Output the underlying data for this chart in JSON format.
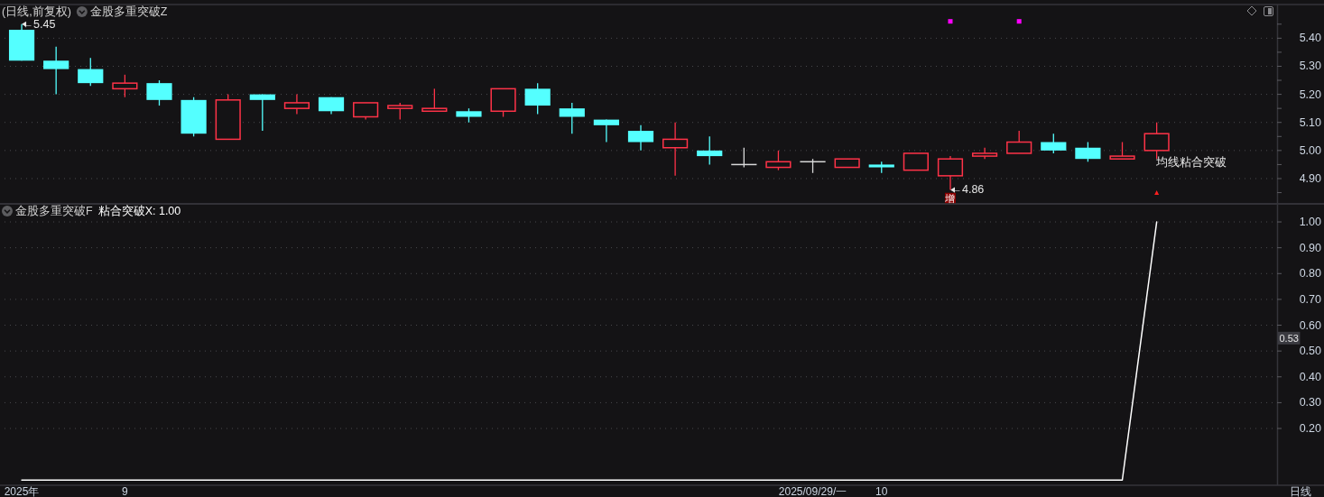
{
  "chart_data": [
    {
      "type": "candlestick",
      "title": "(日线,前复权)",
      "subtitle": "金股多重突破Z",
      "categories": [
        null,
        null,
        null,
        null,
        null,
        null,
        null,
        null,
        null,
        null,
        null,
        null,
        null,
        null,
        null,
        null,
        null,
        null,
        null,
        null,
        null,
        null,
        null,
        null,
        null,
        null,
        null,
        null,
        null,
        null,
        null,
        null,
        null,
        null,
        null,
        null,
        null
      ],
      "ohlc": [
        [
          5.43,
          5.45,
          5.32,
          5.32
        ],
        [
          5.32,
          5.37,
          5.2,
          5.29
        ],
        [
          5.29,
          5.33,
          5.23,
          5.24
        ],
        [
          5.22,
          5.27,
          5.19,
          5.24
        ],
        [
          5.24,
          5.25,
          5.16,
          5.18
        ],
        [
          5.18,
          5.19,
          5.05,
          5.06
        ],
        [
          5.04,
          5.2,
          5.04,
          5.18
        ],
        [
          5.2,
          5.2,
          5.07,
          5.18
        ],
        [
          5.15,
          5.2,
          5.13,
          5.17
        ],
        [
          5.19,
          5.19,
          5.13,
          5.14
        ],
        [
          5.12,
          5.17,
          5.11,
          5.17
        ],
        [
          5.15,
          5.17,
          5.11,
          5.16
        ],
        [
          5.14,
          5.22,
          5.14,
          5.15
        ],
        [
          5.14,
          5.15,
          5.1,
          5.12
        ],
        [
          5.14,
          5.22,
          5.12,
          5.22
        ],
        [
          5.22,
          5.24,
          5.13,
          5.16
        ],
        [
          5.15,
          5.17,
          5.06,
          5.12
        ],
        [
          5.11,
          5.11,
          5.03,
          5.09
        ],
        [
          5.07,
          5.09,
          5.0,
          5.03
        ],
        [
          5.01,
          5.1,
          4.91,
          5.04
        ],
        [
          5.0,
          5.05,
          4.95,
          4.98
        ],
        [
          4.95,
          5.01,
          4.94,
          4.95
        ],
        [
          4.94,
          5.0,
          4.93,
          4.96
        ],
        [
          4.96,
          4.97,
          4.92,
          4.96
        ],
        [
          4.94,
          4.97,
          4.94,
          4.97
        ],
        [
          4.95,
          4.96,
          4.92,
          4.94
        ],
        [
          4.93,
          4.99,
          4.93,
          4.99
        ],
        [
          4.91,
          4.98,
          4.86,
          4.97
        ],
        [
          4.98,
          5.01,
          4.97,
          4.99
        ],
        [
          4.99,
          5.07,
          4.99,
          5.03
        ],
        [
          5.03,
          5.06,
          4.99,
          5.0
        ],
        [
          5.01,
          5.03,
          4.96,
          4.97
        ],
        [
          4.97,
          5.03,
          4.97,
          4.98
        ],
        [
          5.0,
          5.1,
          4.97,
          5.06
        ],
        null,
        null,
        null
      ],
      "colors": [
        "#54ffff",
        "#54ffff",
        "#54ffff",
        "#ff3348",
        "#54ffff",
        "#54ffff",
        "#ff3348",
        "#54ffff",
        "#ff3348",
        "#54ffff",
        "#ff3348",
        "#ff3348",
        "#ff3348",
        "#54ffff",
        "#ff3348",
        "#54ffff",
        "#54ffff",
        "#54ffff",
        "#54ffff",
        "#ff3348",
        "#54ffff",
        "#d9d9d9",
        "#ff3348",
        "#d9d9d9",
        "#ff3348",
        "#54ffff",
        "#ff3348",
        "#ff3348",
        "#ff3348",
        "#ff3348",
        "#54ffff",
        "#54ffff",
        "#ff3348",
        "#ff3348",
        null,
        null,
        null
      ],
      "series": [
        {
          "type": "scatter",
          "color": "#ff00ff",
          "marker": "square",
          "values": [
            null,
            null,
            null,
            null,
            null,
            null,
            null,
            null,
            null,
            null,
            null,
            null,
            null,
            null,
            null,
            null,
            null,
            null,
            null,
            null,
            null,
            null,
            null,
            null,
            null,
            null,
            null,
            5.46,
            null,
            5.46,
            null,
            null,
            null,
            null,
            null,
            null,
            null
          ]
        },
        {
          "type": "scatter",
          "color": "#ff2020",
          "marker": "triangle",
          "values": [
            null,
            null,
            null,
            null,
            null,
            null,
            null,
            null,
            null,
            null,
            null,
            null,
            null,
            null,
            null,
            null,
            null,
            null,
            null,
            null,
            null,
            null,
            null,
            null,
            null,
            null,
            null,
            null,
            null,
            null,
            null,
            null,
            null,
            4.85,
            null,
            null,
            null
          ]
        },
        {
          "type": "scatter",
          "color": "#8b0000",
          "marker": "square",
          "values": [
            null,
            null,
            null,
            null,
            null,
            null,
            null,
            null,
            null,
            null,
            null,
            null,
            null,
            null,
            null,
            null,
            null,
            null,
            null,
            null,
            null,
            null,
            null,
            null,
            null,
            null,
            null,
            4.83,
            null,
            null,
            null,
            null,
            null,
            null,
            null,
            null,
            null
          ],
          "value_labels": [
            null,
            null,
            null,
            null,
            null,
            null,
            null,
            null,
            null,
            null,
            null,
            null,
            null,
            null,
            null,
            null,
            null,
            null,
            null,
            null,
            null,
            null,
            null,
            null,
            null,
            null,
            null,
            "增",
            null,
            null,
            null,
            null,
            null,
            null,
            null,
            null,
            null
          ]
        },
        {
          "type": "scatter",
          "color": "#e6e6e6",
          "marker": "triangle",
          "values": [
            5.45,
            null,
            null,
            null,
            null,
            null,
            null,
            null,
            null,
            null,
            null,
            null,
            null,
            null,
            null,
            null,
            null,
            null,
            null,
            null,
            null,
            null,
            null,
            null,
            null,
            null,
            null,
            4.86,
            null,
            null,
            null,
            null,
            null,
            null,
            null,
            null,
            null
          ],
          "value_labels": [
            "←5.45",
            null,
            null,
            null,
            null,
            null,
            null,
            null,
            null,
            null,
            null,
            null,
            null,
            null,
            null,
            null,
            null,
            null,
            null,
            null,
            null,
            null,
            null,
            null,
            null,
            null,
            null,
            "←4.86",
            null,
            null,
            null,
            null,
            null,
            null,
            null,
            null,
            null
          ]
        }
      ],
      "ylim": [
        4.81,
        5.52
      ],
      "yticks": [
        {
          "value": 4.85,
          "label": null
        },
        {
          "value": 4.9,
          "label": "4.90"
        },
        {
          "value": 4.95,
          "label": null
        },
        {
          "value": 5.0,
          "label": "5.00"
        },
        {
          "value": 5.05,
          "label": null
        },
        {
          "value": 5.1,
          "label": "5.10"
        },
        {
          "value": 5.15,
          "label": null
        },
        {
          "value": 5.2,
          "label": "5.20"
        },
        {
          "value": 5.25,
          "label": null
        },
        {
          "value": 5.3,
          "label": "5.30"
        },
        {
          "value": 5.35,
          "label": null
        },
        {
          "value": 5.4,
          "label": "5.40"
        },
        {
          "value": 5.45,
          "label": null
        }
      ],
      "grid": "y",
      "tick_labels": "y",
      "annotations": [
        "均线粘合突破"
      ]
    },
    {
      "type": "line",
      "title": "金股多重突破F",
      "xlabel": "日线",
      "categories": [
        "2025年",
        null,
        null,
        "9",
        null,
        null,
        null,
        null,
        null,
        null,
        null,
        null,
        null,
        null,
        null,
        null,
        null,
        null,
        null,
        null,
        null,
        null,
        null,
        "2025/09/29/一",
        null,
        "10",
        null,
        null,
        null,
        null,
        null,
        null,
        null,
        null,
        null,
        null,
        null
      ],
      "series": [
        {
          "name": "粘合突破X: 1.00",
          "color": "#ffffff",
          "values": [
            0,
            0,
            0,
            0,
            0,
            0,
            0,
            0,
            0,
            0,
            0,
            0,
            0,
            0,
            0,
            0,
            0,
            0,
            0,
            0,
            0,
            0,
            0,
            0,
            0,
            0,
            0,
            0,
            0,
            0,
            0,
            0,
            0,
            1.0,
            null,
            null,
            null
          ]
        }
      ],
      "ylim": [
        -0.02,
        1.07
      ],
      "yticks": [
        {
          "value": 0.2,
          "label": "0.20"
        },
        {
          "value": 0.3,
          "label": "0.30"
        },
        {
          "value": 0.4,
          "label": "0.40"
        },
        {
          "value": 0.5,
          "label": "0.50"
        },
        {
          "value": 0.6,
          "label": "0.60"
        },
        {
          "value": 0.7,
          "label": "0.70"
        },
        {
          "value": 0.8,
          "label": "0.80"
        },
        {
          "value": 0.9,
          "label": "0.90"
        },
        {
          "value": 1.0,
          "label": "1.00"
        }
      ],
      "grid": "y",
      "legend": "top left",
      "annotations": [
        "0.53"
      ]
    }
  ]
}
